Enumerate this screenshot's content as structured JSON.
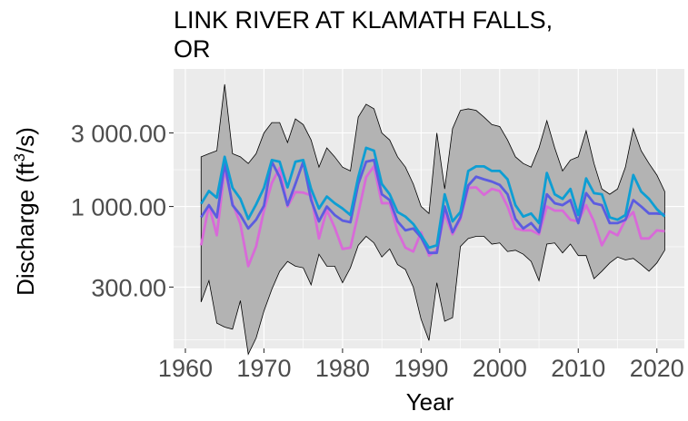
{
  "chart_data": {
    "type": "line",
    "title_lines": [
      "LINK RIVER AT KLAMATH FALLS,",
      "OR"
    ],
    "xlabel": "Year",
    "ylabel": {
      "prefix": "Discharge (ft",
      "sup": "3",
      "suffix": "/s)"
    },
    "y_scale": "log10",
    "xlim": [
      1958.5,
      2023.5
    ],
    "ylim": [
      120,
      7800
    ],
    "x_ticks": [
      1960,
      1970,
      1980,
      1990,
      2000,
      2010,
      2020
    ],
    "x_tick_labels": [
      "1960",
      "1970",
      "1980",
      "1990",
      "2000",
      "2010",
      "2020"
    ],
    "y_ticks": [
      300,
      1000,
      3000
    ],
    "y_tick_labels": [
      "300.00",
      "1 000.00",
      "3 000.00"
    ],
    "years": [
      1962,
      1963,
      1964,
      1965,
      1966,
      1967,
      1968,
      1969,
      1970,
      1971,
      1972,
      1973,
      1974,
      1975,
      1976,
      1977,
      1978,
      1979,
      1980,
      1981,
      1982,
      1983,
      1984,
      1985,
      1986,
      1987,
      1988,
      1989,
      1990,
      1991,
      1992,
      1993,
      1994,
      1995,
      1996,
      1997,
      1998,
      1999,
      2000,
      2001,
      2002,
      2003,
      2004,
      2005,
      2006,
      2007,
      2008,
      2009,
      2010,
      2011,
      2012,
      2013,
      2014,
      2015,
      2016,
      2017,
      2018,
      2019,
      2020,
      2021
    ],
    "max": [
      2100,
      2200,
      2300,
      6200,
      2200,
      2100,
      1900,
      2200,
      3000,
      3500,
      3500,
      2600,
      3700,
      3400,
      2700,
      1800,
      2400,
      2100,
      1800,
      1700,
      3800,
      4600,
      4300,
      3000,
      2700,
      2100,
      1800,
      1400,
      1000,
      900,
      3000,
      1300,
      3200,
      4200,
      4300,
      4200,
      3800,
      3400,
      3300,
      2700,
      2100,
      1900,
      1800,
      2400,
      3600,
      2400,
      1700,
      2000,
      2100,
      3100,
      1900,
      1300,
      1200,
      1300,
      1800,
      3200,
      2300,
      1900,
      1600,
      1250
    ],
    "min": [
      240,
      330,
      175,
      165,
      160,
      245,
      110,
      140,
      210,
      290,
      380,
      440,
      410,
      400,
      310,
      490,
      410,
      410,
      320,
      400,
      560,
      640,
      580,
      470,
      530,
      420,
      390,
      300,
      185,
      135,
      320,
      180,
      190,
      550,
      620,
      640,
      640,
      570,
      580,
      510,
      520,
      490,
      440,
      330,
      570,
      580,
      500,
      570,
      480,
      480,
      340,
      380,
      430,
      470,
      450,
      460,
      420,
      380,
      430,
      520
    ],
    "series": [
      {
        "name": "",
        "color": "#0e9ed3",
        "values": [
          1040,
          1260,
          1140,
          2100,
          1320,
          1120,
          830,
          1030,
          1320,
          2000,
          1950,
          1330,
          1950,
          2000,
          1300,
          970,
          1160,
          1050,
          970,
          880,
          1550,
          2400,
          2300,
          1400,
          1200,
          920,
          860,
          770,
          650,
          540,
          560,
          1200,
          800,
          920,
          1700,
          1820,
          1820,
          1700,
          1700,
          1500,
          1020,
          860,
          900,
          780,
          1650,
          1200,
          1120,
          1300,
          880,
          1520,
          1220,
          1200,
          850,
          820,
          880,
          1600,
          1250,
          1120,
          960,
          860
        ]
      },
      {
        "name": "",
        "color": "#5c5ce0",
        "values": [
          850,
          1020,
          850,
          1900,
          1020,
          880,
          720,
          820,
          1010,
          1950,
          1550,
          1020,
          1400,
          1950,
          1100,
          800,
          1000,
          880,
          810,
          790,
          1400,
          1950,
          2000,
          1200,
          1100,
          800,
          700,
          720,
          630,
          500,
          500,
          1000,
          680,
          850,
          1370,
          1560,
          1500,
          1450,
          1380,
          1200,
          830,
          720,
          780,
          680,
          1200,
          1050,
          1020,
          1100,
          780,
          1220,
          1050,
          1020,
          780,
          780,
          820,
          1100,
          1000,
          900,
          900,
          890
        ]
      },
      {
        "name": "",
        "color": "#d86ad8",
        "values": [
          560,
          1020,
          650,
          1750,
          1050,
          770,
          410,
          550,
          940,
          1420,
          1780,
          1000,
          1240,
          1230,
          1180,
          620,
          950,
          730,
          530,
          540,
          900,
          1550,
          1820,
          1050,
          1050,
          690,
          540,
          510,
          680,
          480,
          520,
          900,
          660,
          830,
          1320,
          1330,
          1190,
          1300,
          1260,
          1000,
          720,
          700,
          700,
          660,
          1000,
          940,
          940,
          820,
          800,
          1020,
          800,
          560,
          690,
          650,
          820,
          920,
          620,
          620,
          700,
          690
        ]
      }
    ]
  }
}
